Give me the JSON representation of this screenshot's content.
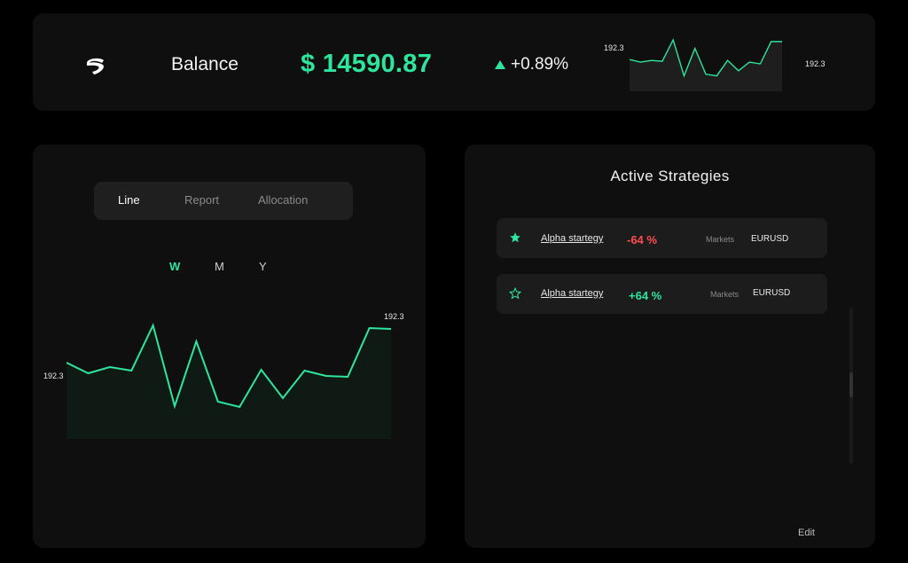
{
  "header": {
    "logo_icon": "swoosh-logo-icon",
    "balance_label": "Balance",
    "balance_value": "$ 14590.87",
    "change": "+0.89%",
    "change_icon": "triangle-up-icon",
    "mini_chart": {
      "left_label": "192.3",
      "right_label": "192.3",
      "values": [
        37,
        34,
        36,
        35,
        60,
        18,
        50,
        20,
        18,
        36,
        24,
        34,
        32,
        58,
        58
      ]
    }
  },
  "chart_panel": {
    "tabs": [
      {
        "label": "Line",
        "active": true
      },
      {
        "label": "Report",
        "active": false
      },
      {
        "label": "Allocation",
        "active": false
      }
    ],
    "periods": [
      {
        "label": "W",
        "active": true
      },
      {
        "label": "M",
        "active": false
      },
      {
        "label": "Y",
        "active": false
      }
    ],
    "chart": {
      "left_label": "192.3",
      "right_label": "192.3",
      "values": [
        86,
        74,
        81,
        77,
        128,
        37,
        110,
        42,
        36,
        78,
        46,
        77,
        71,
        70,
        125,
        124
      ]
    }
  },
  "strategies": {
    "title": "Active  Strategies",
    "rows": [
      {
        "name": "Alpha startegy",
        "pct": "-64 %",
        "sign": "neg",
        "markets_label": "Markets",
        "symbol": "EURUSD",
        "starred": true
      },
      {
        "name": "Alpha startegy",
        "pct": "+64 %",
        "sign": "pos",
        "markets_label": "Markets",
        "symbol": "EURUSD",
        "starred": false
      }
    ],
    "edit_label": "Edit"
  },
  "colors": {
    "accent": "#2ee59d",
    "negative": "#ff4d4d"
  }
}
